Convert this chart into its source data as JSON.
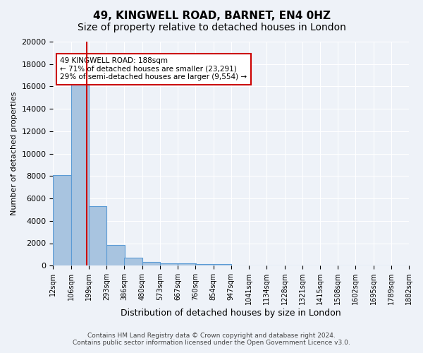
{
  "title": "49, KINGWELL ROAD, BARNET, EN4 0HZ",
  "subtitle": "Size of property relative to detached houses in London",
  "xlabel": "Distribution of detached houses by size in London",
  "ylabel": "Number of detached properties",
  "annotation_title": "49 KINGWELL ROAD: 188sqm",
  "annotation_line1": "← 71% of detached houses are smaller (23,291)",
  "annotation_line2": "29% of semi-detached houses are larger (9,554) →",
  "footer_line1": "Contains HM Land Registry data © Crown copyright and database right 2024.",
  "footer_line2": "Contains public sector information licensed under the Open Government Licence v3.0.",
  "bin_labels": [
    "12sqm",
    "106sqm",
    "199sqm",
    "293sqm",
    "386sqm",
    "480sqm",
    "573sqm",
    "667sqm",
    "760sqm",
    "854sqm",
    "947sqm",
    "1041sqm",
    "1134sqm",
    "1228sqm",
    "1321sqm",
    "1415sqm",
    "1508sqm",
    "1602sqm",
    "1695sqm",
    "1789sqm",
    "1882sqm"
  ],
  "bin_edges": [
    12,
    106,
    199,
    293,
    386,
    480,
    573,
    667,
    760,
    854,
    947,
    1041,
    1134,
    1228,
    1321,
    1415,
    1508,
    1602,
    1695,
    1789,
    1882
  ],
  "bar_heights": [
    8100,
    16500,
    5300,
    1850,
    700,
    300,
    220,
    180,
    160,
    130,
    0,
    0,
    0,
    0,
    0,
    0,
    0,
    0,
    0,
    0
  ],
  "bar_color": "#a8c4e0",
  "bar_edge_color": "#5b9bd5",
  "vline_x": 188,
  "vline_color": "#cc0000",
  "ylim": [
    0,
    20000
  ],
  "yticks": [
    0,
    2000,
    4000,
    6000,
    8000,
    10000,
    12000,
    14000,
    16000,
    18000,
    20000
  ],
  "annotation_box_color": "#cc0000",
  "background_color": "#eef2f8",
  "plot_bg_color": "#eef2f8",
  "grid_color": "#ffffff",
  "title_fontsize": 11,
  "subtitle_fontsize": 10
}
